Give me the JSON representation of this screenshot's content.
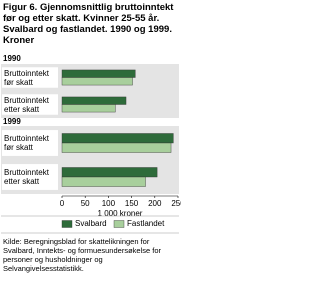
{
  "title": "Figur 6. Gjennomsnittlig bruttoinntekt før og etter skatt. Kvinner 25-55 år. Svalbard og fastlandet. 1990 og 1999. Kroner",
  "source": "Kilde: Beregningsblad for skattelikningen for Svalbard, Inntekts- og formuesundersøkelse for personer og husholdninger og Selvangivelsesstatistikk.",
  "chart_data": [
    {
      "type": "bar",
      "orientation": "horizontal",
      "subtitle": "1990",
      "categories": [
        "Bruttoinntekt før skatt",
        "Bruttoinntekt etter skatt"
      ],
      "series": [
        {
          "name": "Svalbard",
          "color": "#2e6b3a",
          "values": [
            158,
            138
          ]
        },
        {
          "name": "Fastlandet",
          "color": "#a8cf9c",
          "values": [
            152,
            115
          ]
        }
      ],
      "xlim": [
        0,
        250
      ]
    },
    {
      "type": "bar",
      "orientation": "horizontal",
      "subtitle": "1999",
      "categories": [
        "Bruttoinntekt før skatt",
        "Bruttoinntekt etter skatt"
      ],
      "series": [
        {
          "name": "Svalbard",
          "color": "#2e6b3a",
          "values": [
            240,
            205
          ]
        },
        {
          "name": "Fastlandet",
          "color": "#a8cf9c",
          "values": [
            235,
            180
          ]
        }
      ],
      "xlim": [
        0,
        250
      ],
      "xticks": [
        0,
        50,
        100,
        150,
        200,
        250
      ],
      "xlabel": "1 000 kroner"
    }
  ]
}
